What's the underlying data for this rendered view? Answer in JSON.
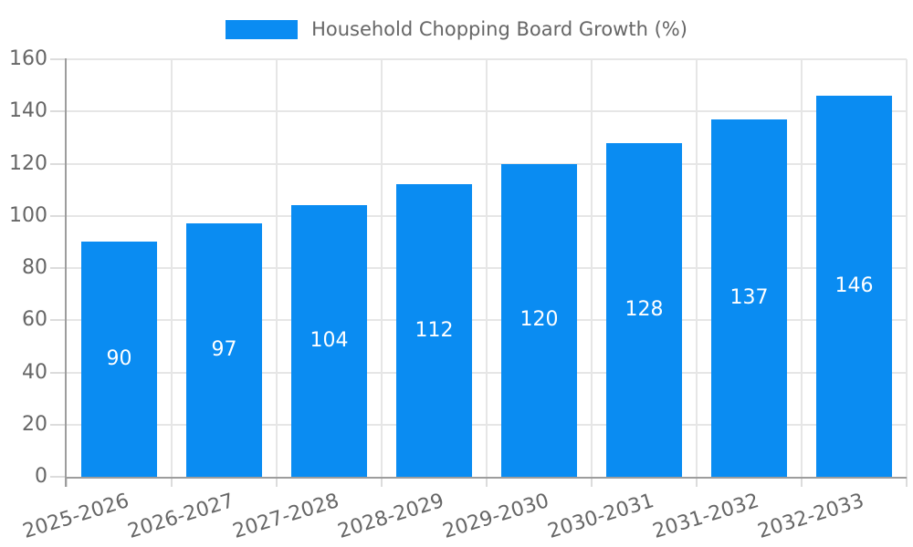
{
  "chart_data": {
    "type": "bar",
    "title": "Household Chopping Board Growth (%)",
    "categories": [
      "2025-2026",
      "2026-2027",
      "2027-2028",
      "2028-2029",
      "2029-2030",
      "2030-2031",
      "2031-2032",
      "2032-2033"
    ],
    "values": [
      90,
      97,
      104,
      112,
      120,
      128,
      137,
      146
    ],
    "xlabel": "",
    "ylabel": "",
    "ylim": [
      0,
      160
    ],
    "ytick_step": 20,
    "ytick_labels": [
      "0",
      "20",
      "40",
      "60",
      "80",
      "100",
      "120",
      "140",
      "160"
    ],
    "grid": true,
    "legend_position": "top-center",
    "x_label_rotation_deg": -17,
    "colors": {
      "bar": "#0a8cf2",
      "value_label": "#ffffff",
      "axis_text": "#666666",
      "grid_line": "#e6e6e6",
      "tick_mark": "#dcdcdc",
      "axis_border": "#9d9d9d",
      "background": "#ffffff"
    }
  }
}
